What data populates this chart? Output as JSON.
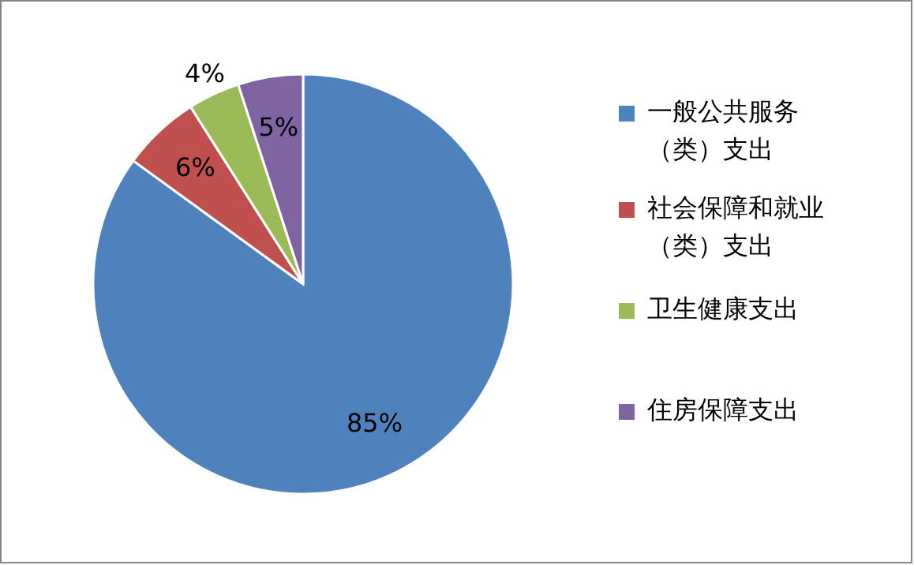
{
  "chart_data": {
    "type": "pie",
    "categories": [
      "一般公共服务（类）支出",
      "社会保障和就业（类）支出",
      "卫生健康支出",
      "住房保障支出"
    ],
    "values": [
      85,
      6,
      4,
      5
    ],
    "colors": [
      "#4f81bd",
      "#c0504d",
      "#9bbb59",
      "#8064a2"
    ],
    "value_labels": [
      "85%",
      "6%",
      "4%",
      "5%"
    ],
    "legend": "right"
  }
}
